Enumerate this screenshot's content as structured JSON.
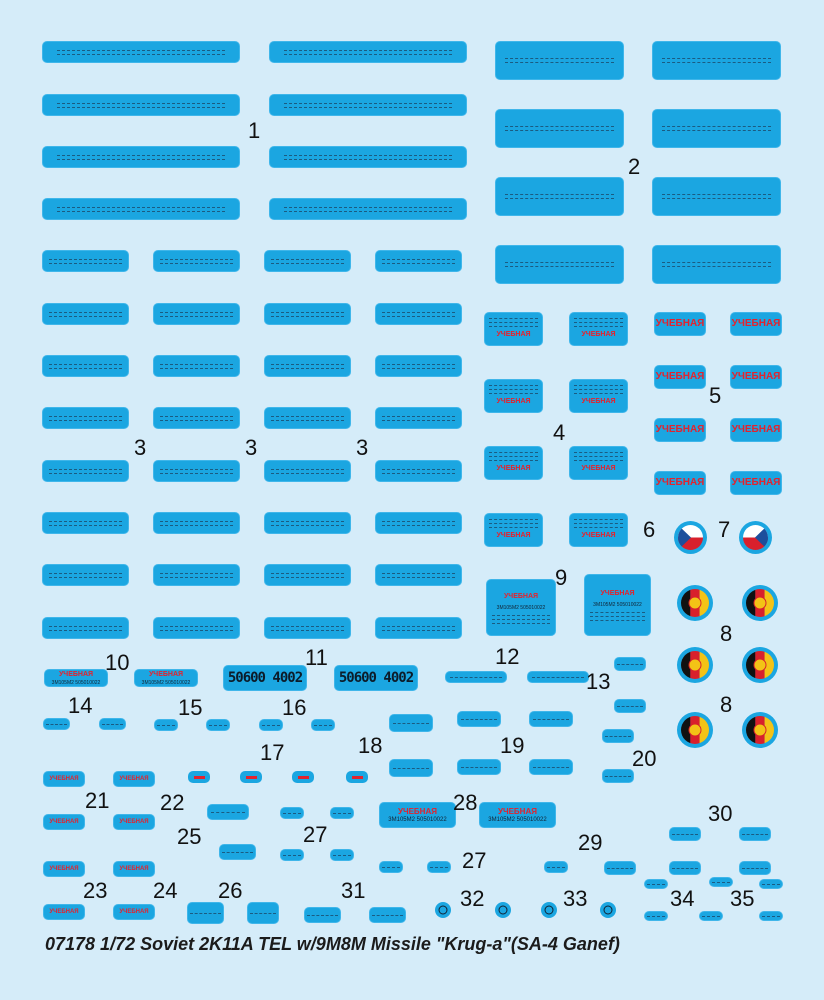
{
  "sheet_title": "07178 1/72 Soviet 2K11A  TEL w/9M8M Missile \"Krug-a\"(SA-4 Ganef)",
  "decal_text": {
    "training": "УЧЕБНАЯ",
    "registration": "50600 4002",
    "missile_serial": "3M105M2 505010022"
  },
  "decal_numbers": [
    "1",
    "2",
    "3",
    "4",
    "5",
    "6",
    "7",
    "8",
    "9",
    "10",
    "11",
    "12",
    "13",
    "14",
    "15",
    "16",
    "17",
    "18",
    "19",
    "20",
    "21",
    "22",
    "23",
    "24",
    "25",
    "26",
    "27",
    "28",
    "29",
    "30",
    "31",
    "32",
    "33",
    "34",
    "35"
  ],
  "colors": {
    "background": "#d5ecf9",
    "decal_film": "#1ba6e1",
    "red_text": "#e3232e",
    "czech_blue": "#1d4f9c",
    "czech_red": "#d8202c",
    "gdr_black": "#111111",
    "gdr_red": "#d8202c",
    "gdr_gold": "#f3c316"
  }
}
